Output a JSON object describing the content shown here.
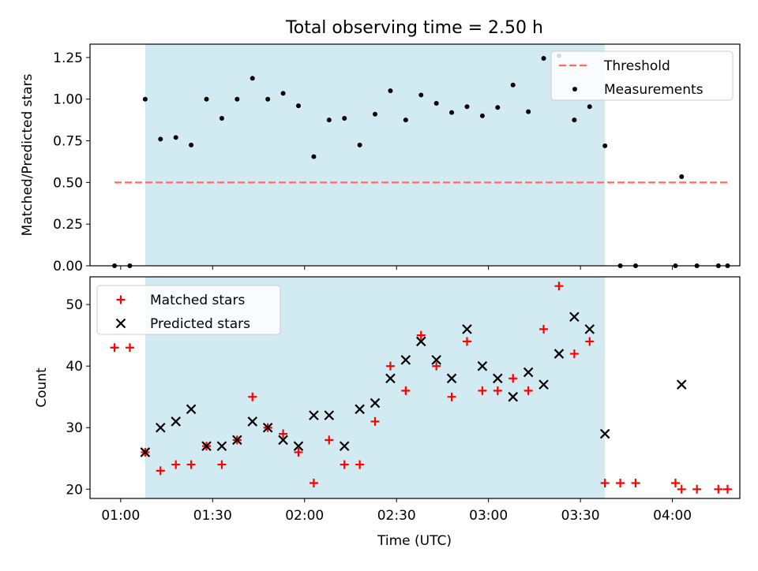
{
  "title": "Total observing time = 2.50 h",
  "xlabel": "Time (UTC)",
  "x_ticks": [
    "01:00",
    "01:30",
    "02:00",
    "02:30",
    "03:00",
    "03:30",
    "04:00"
  ],
  "observing_window": {
    "start": "01:08",
    "end": "03:38",
    "color": "#add8e6"
  },
  "chart_data": [
    {
      "type": "scatter",
      "ylabel": "Matched/Predicted stars",
      "ylim": [
        0,
        1.33
      ],
      "y_ticks": [
        "0.00",
        "0.25",
        "0.50",
        "0.75",
        "1.00",
        "1.25"
      ],
      "legend": {
        "position": "top-right",
        "entries": [
          "Threshold",
          "Measurements"
        ]
      },
      "threshold": {
        "name": "Threshold",
        "value": 0.5,
        "x_start": "00:58",
        "x_end": "04:18",
        "color": "#ff6b6b"
      },
      "series": [
        {
          "name": "Measurements",
          "marker": "dot",
          "color": "#000000",
          "points": [
            [
              "00:58",
              0.0
            ],
            [
              "01:03",
              0.0
            ],
            [
              "01:08",
              1.0
            ],
            [
              "01:13",
              0.76
            ],
            [
              "01:18",
              0.77
            ],
            [
              "01:23",
              0.725
            ],
            [
              "01:28",
              1.0
            ],
            [
              "01:33",
              0.885
            ],
            [
              "01:38",
              1.0
            ],
            [
              "01:43",
              1.125
            ],
            [
              "01:48",
              1.0
            ],
            [
              "01:53",
              1.035
            ],
            [
              "01:58",
              0.96
            ],
            [
              "02:03",
              0.655
            ],
            [
              "02:08",
              0.875
            ],
            [
              "02:13",
              0.885
            ],
            [
              "02:18",
              0.725
            ],
            [
              "02:23",
              0.91
            ],
            [
              "02:28",
              1.05
            ],
            [
              "02:33",
              0.875
            ],
            [
              "02:38",
              1.025
            ],
            [
              "02:43",
              0.975
            ],
            [
              "02:48",
              0.92
            ],
            [
              "02:53",
              0.955
            ],
            [
              "02:58",
              0.9
            ],
            [
              "03:03",
              0.95
            ],
            [
              "03:08",
              1.085
            ],
            [
              "03:13",
              0.925
            ],
            [
              "03:18",
              1.245
            ],
            [
              "03:23",
              1.26
            ],
            [
              "03:28",
              0.875
            ],
            [
              "03:33",
              0.955
            ],
            [
              "03:38",
              0.72
            ],
            [
              "03:43",
              0.0
            ],
            [
              "03:48",
              0.0
            ],
            [
              "04:01",
              0.0
            ],
            [
              "04:03",
              0.535
            ],
            [
              "04:08",
              0.0
            ],
            [
              "04:15",
              0.0
            ],
            [
              "04:18",
              0.0
            ]
          ]
        }
      ]
    },
    {
      "type": "scatter",
      "ylabel": "Count",
      "ylim": [
        18.5,
        54.5
      ],
      "y_ticks": [
        "20",
        "30",
        "40",
        "50"
      ],
      "legend": {
        "position": "top-left",
        "entries": [
          "Matched stars",
          "Predicted stars"
        ]
      },
      "series": [
        {
          "name": "Matched stars",
          "marker": "plus",
          "color": "#ff0000",
          "points": [
            [
              "00:58",
              43
            ],
            [
              "01:03",
              43
            ],
            [
              "01:08",
              26
            ],
            [
              "01:13",
              23
            ],
            [
              "01:18",
              24
            ],
            [
              "01:23",
              24
            ],
            [
              "01:28",
              27
            ],
            [
              "01:33",
              24
            ],
            [
              "01:38",
              28
            ],
            [
              "01:43",
              35
            ],
            [
              "01:48",
              30
            ],
            [
              "01:53",
              29
            ],
            [
              "01:58",
              26
            ],
            [
              "02:03",
              21
            ],
            [
              "02:08",
              28
            ],
            [
              "02:13",
              24
            ],
            [
              "02:18",
              24
            ],
            [
              "02:23",
              31
            ],
            [
              "02:28",
              40
            ],
            [
              "02:33",
              36
            ],
            [
              "02:38",
              45
            ],
            [
              "02:43",
              40
            ],
            [
              "02:48",
              35
            ],
            [
              "02:53",
              44
            ],
            [
              "02:58",
              36
            ],
            [
              "03:03",
              36
            ],
            [
              "03:08",
              38
            ],
            [
              "03:13",
              36
            ],
            [
              "03:18",
              46
            ],
            [
              "03:23",
              53
            ],
            [
              "03:28",
              42
            ],
            [
              "03:33",
              44
            ],
            [
              "03:38",
              21
            ],
            [
              "03:43",
              21
            ],
            [
              "03:48",
              21
            ],
            [
              "04:01",
              21
            ],
            [
              "04:03",
              20
            ],
            [
              "04:08",
              20
            ],
            [
              "04:15",
              20
            ],
            [
              "04:18",
              20
            ]
          ]
        },
        {
          "name": "Predicted stars",
          "marker": "x",
          "color": "#000000",
          "points": [
            [
              "01:08",
              26
            ],
            [
              "01:13",
              30
            ],
            [
              "01:18",
              31
            ],
            [
              "01:23",
              33
            ],
            [
              "01:28",
              27
            ],
            [
              "01:33",
              27
            ],
            [
              "01:38",
              28
            ],
            [
              "01:43",
              31
            ],
            [
              "01:48",
              30
            ],
            [
              "01:53",
              28
            ],
            [
              "01:58",
              27
            ],
            [
              "02:03",
              32
            ],
            [
              "02:08",
              32
            ],
            [
              "02:13",
              27
            ],
            [
              "02:18",
              33
            ],
            [
              "02:23",
              34
            ],
            [
              "02:28",
              38
            ],
            [
              "02:33",
              41
            ],
            [
              "02:38",
              44
            ],
            [
              "02:43",
              41
            ],
            [
              "02:48",
              38
            ],
            [
              "02:53",
              46
            ],
            [
              "02:58",
              40
            ],
            [
              "03:03",
              38
            ],
            [
              "03:08",
              35
            ],
            [
              "03:13",
              39
            ],
            [
              "03:18",
              37
            ],
            [
              "03:23",
              42
            ],
            [
              "03:28",
              48
            ],
            [
              "03:33",
              46
            ],
            [
              "03:38",
              29
            ],
            [
              "04:03",
              37
            ]
          ]
        }
      ]
    }
  ]
}
